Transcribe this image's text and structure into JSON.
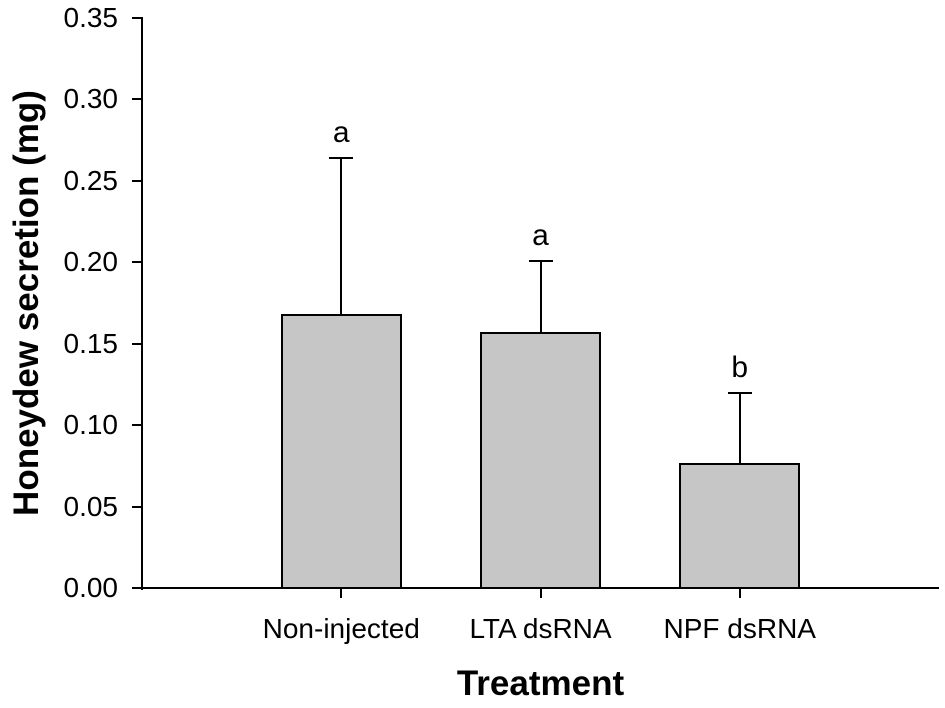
{
  "chart_data": {
    "type": "bar",
    "title": "",
    "xlabel": "Treatment",
    "ylabel": "Honeydew secretion (mg)",
    "categories": [
      "Non-injected",
      "LTA dsRNA",
      "NPF dsRNA"
    ],
    "values": [
      0.168,
      0.157,
      0.077
    ],
    "error_upper": [
      0.096,
      0.044,
      0.043
    ],
    "significance_letters": [
      "a",
      "a",
      "b"
    ],
    "ylim": [
      0,
      0.35
    ],
    "yticks": [
      0.0,
      0.05,
      0.1,
      0.15,
      0.2,
      0.25,
      0.3,
      0.35
    ],
    "ytick_labels": [
      "0.00",
      "0.05",
      "0.10",
      "0.15",
      "0.20",
      "0.25",
      "0.30",
      "0.35"
    ],
    "grid": false,
    "legend": "none",
    "bar_color": "#c6c6c6",
    "bar_border_color": "#000000",
    "axis_color": "#000000",
    "text_color": "#000000"
  }
}
